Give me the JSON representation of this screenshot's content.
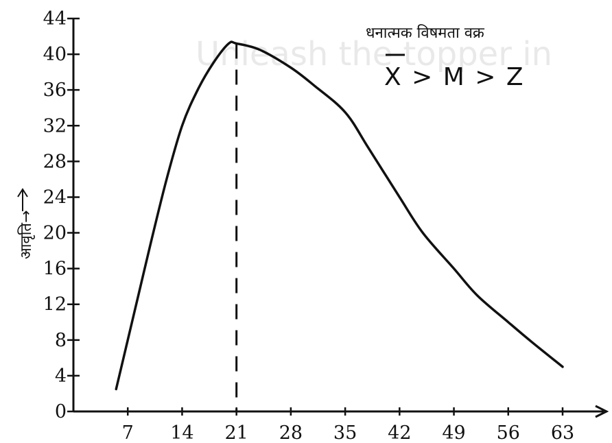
{
  "chart_data": {
    "type": "line",
    "title": "",
    "xlabel": "",
    "ylabel": "आवृति→",
    "x_ticks": [
      7,
      14,
      21,
      28,
      35,
      42,
      49,
      56,
      63
    ],
    "y_ticks": [
      0,
      4,
      8,
      12,
      16,
      20,
      24,
      28,
      32,
      36,
      40,
      44
    ],
    "xlim": [
      0,
      67
    ],
    "ylim": [
      0,
      44
    ],
    "grid": false,
    "series": [
      {
        "name": "",
        "x": [
          5.5,
          7,
          8.5,
          10,
          12,
          14,
          16,
          18,
          20,
          21,
          24,
          28,
          31,
          35,
          38,
          42,
          45,
          49,
          52,
          56,
          59,
          63
        ],
        "y": [
          2.5,
          8,
          13.5,
          19,
          26,
          32,
          36,
          39,
          41.2,
          41.2,
          40.5,
          38.5,
          36.5,
          33.5,
          29.5,
          24,
          20,
          16,
          13,
          10,
          7.8,
          5
        ]
      }
    ],
    "mode_line": {
      "x": 21
    },
    "annotation": {
      "title": "धनात्मक विषमता वक्र",
      "formula": "X > M > Z",
      "formula_overline_char": "X"
    }
  },
  "watermark": "Unleash the topper in"
}
